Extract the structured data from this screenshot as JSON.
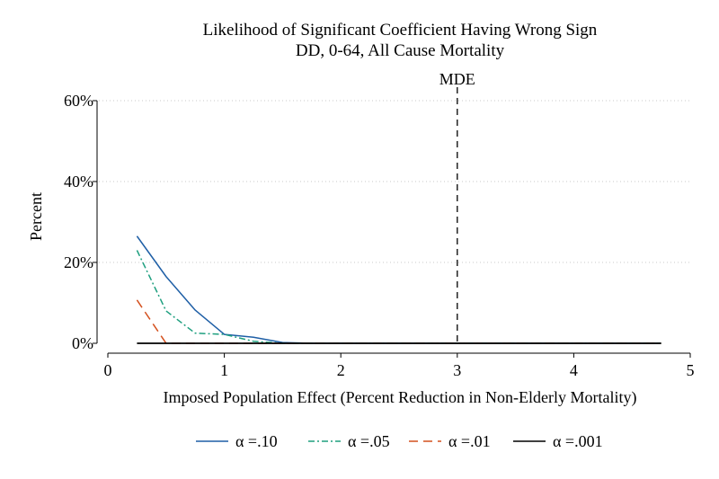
{
  "chart_data": {
    "type": "line",
    "title": "Likelihood of Significant Coefficient Having Wrong Sign",
    "subtitle": "DD, 0-64, All Cause Mortality",
    "xlabel": "Imposed Population Effect (Percent Reduction in Non-Elderly Mortality)",
    "ylabel": "Percent",
    "xlim": [
      0,
      5
    ],
    "ylim": [
      0,
      60
    ],
    "x_ticks": [
      0,
      1,
      2,
      3,
      4,
      5
    ],
    "x_tick_labels": [
      "0",
      "1",
      "2",
      "3",
      "4",
      "5"
    ],
    "y_ticks": [
      0,
      20,
      40,
      60
    ],
    "y_tick_labels": [
      "0%",
      "20%",
      "40%",
      "60%"
    ],
    "grid": "horizontal dotted",
    "legend_position": "bottom",
    "x": [
      0.25,
      0.5,
      0.75,
      1.0,
      1.25,
      1.5,
      1.75,
      2.0,
      2.25,
      2.5,
      2.75,
      3.0,
      3.25,
      3.5,
      3.75,
      4.0,
      4.25,
      4.5,
      4.75
    ],
    "series": [
      {
        "name": "α =.10",
        "color": "#1f5fa6",
        "dash": "solid",
        "values": [
          26.5,
          16.5,
          8.2,
          2.2,
          1.5,
          0.2,
          0,
          0,
          0,
          0,
          0,
          0,
          0,
          0,
          0,
          0,
          0,
          0,
          0
        ]
      },
      {
        "name": "α =.05",
        "color": "#1e9f7f",
        "dash": "dashdot",
        "values": [
          23,
          8,
          2.5,
          2.2,
          0.5,
          0,
          0,
          0,
          0,
          0,
          0,
          0,
          0,
          0,
          0,
          0,
          0,
          0,
          0
        ]
      },
      {
        "name": "α =.01",
        "color": "#d4511f",
        "dash": "longdash",
        "values": [
          10.7,
          0,
          0,
          0,
          0,
          0,
          0,
          0,
          0,
          0,
          0,
          0,
          0,
          0,
          0,
          0,
          0,
          0,
          0
        ]
      },
      {
        "name": "α =.001",
        "color": "#000000",
        "dash": "solid",
        "values": [
          0,
          0,
          0,
          0,
          0,
          0,
          0,
          0,
          0,
          0,
          0,
          0,
          0,
          0,
          0,
          0,
          0,
          0,
          0
        ]
      }
    ],
    "annotations": [
      {
        "label": "MDE",
        "x": 3,
        "style": "dashed vertical line"
      }
    ]
  }
}
